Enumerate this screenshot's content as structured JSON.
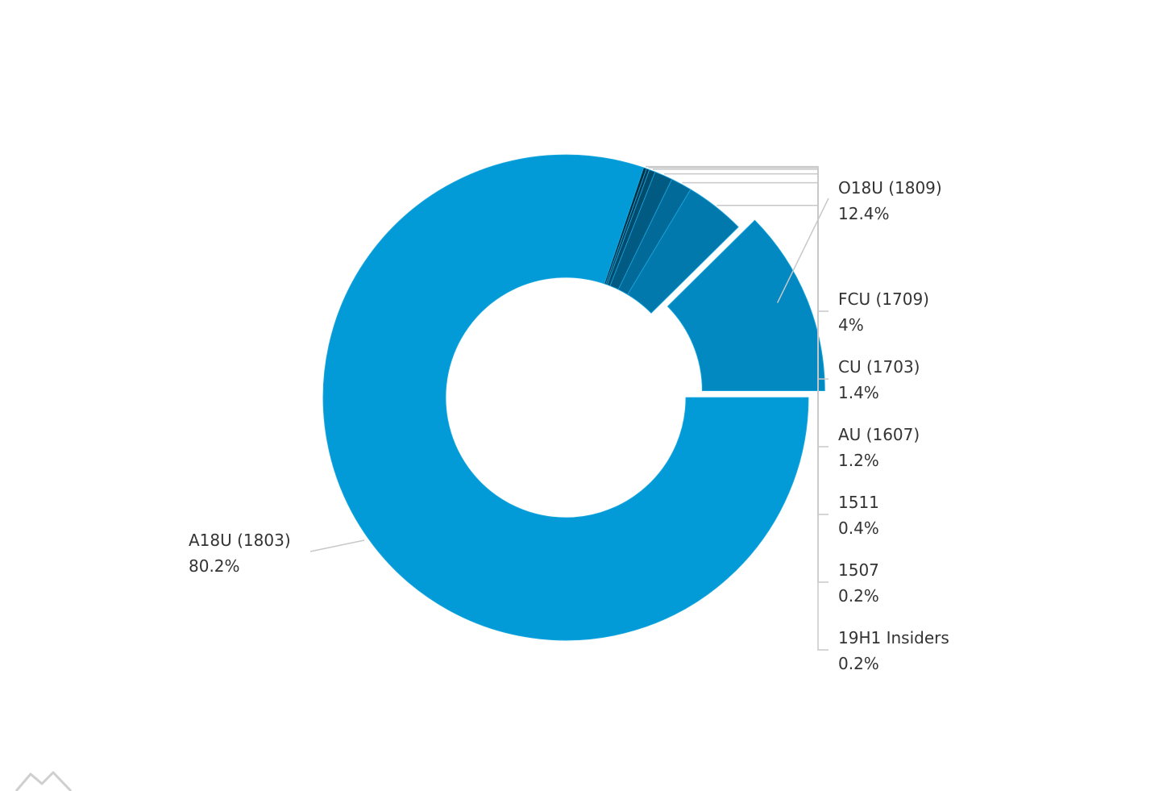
{
  "chart_data": {
    "type": "pie",
    "variant": "donut",
    "title": "",
    "slices": [
      {
        "label": "O18U (1809)",
        "value": 12.4,
        "display": "12.4%",
        "color": "#0289c2",
        "exploded": true
      },
      {
        "label": "FCU (1709)",
        "value": 4,
        "display": "4%",
        "color": "#0279ad",
        "exploded": false
      },
      {
        "label": "CU (1703)",
        "value": 1.4,
        "display": "1.4%",
        "color": "#026a98",
        "exploded": false
      },
      {
        "label": "AU (1607)",
        "value": 1.2,
        "display": "1.2%",
        "color": "#015a82",
        "exploded": false
      },
      {
        "label": "1511",
        "value": 0.4,
        "display": "0.4%",
        "color": "#014b6c",
        "exploded": false
      },
      {
        "label": "1507",
        "value": 0.2,
        "display": "0.2%",
        "color": "#013c57",
        "exploded": false
      },
      {
        "label": "19H1 Insiders",
        "value": 0.2,
        "display": "0.2%",
        "color": "#012d41",
        "exploded": false
      },
      {
        "label": "A18U (1803)",
        "value": 80.2,
        "display": "80.2%",
        "color": "#039bd7",
        "exploded": false
      }
    ],
    "legend": "none"
  },
  "watermark": {
    "icon": "mountain-icon"
  }
}
